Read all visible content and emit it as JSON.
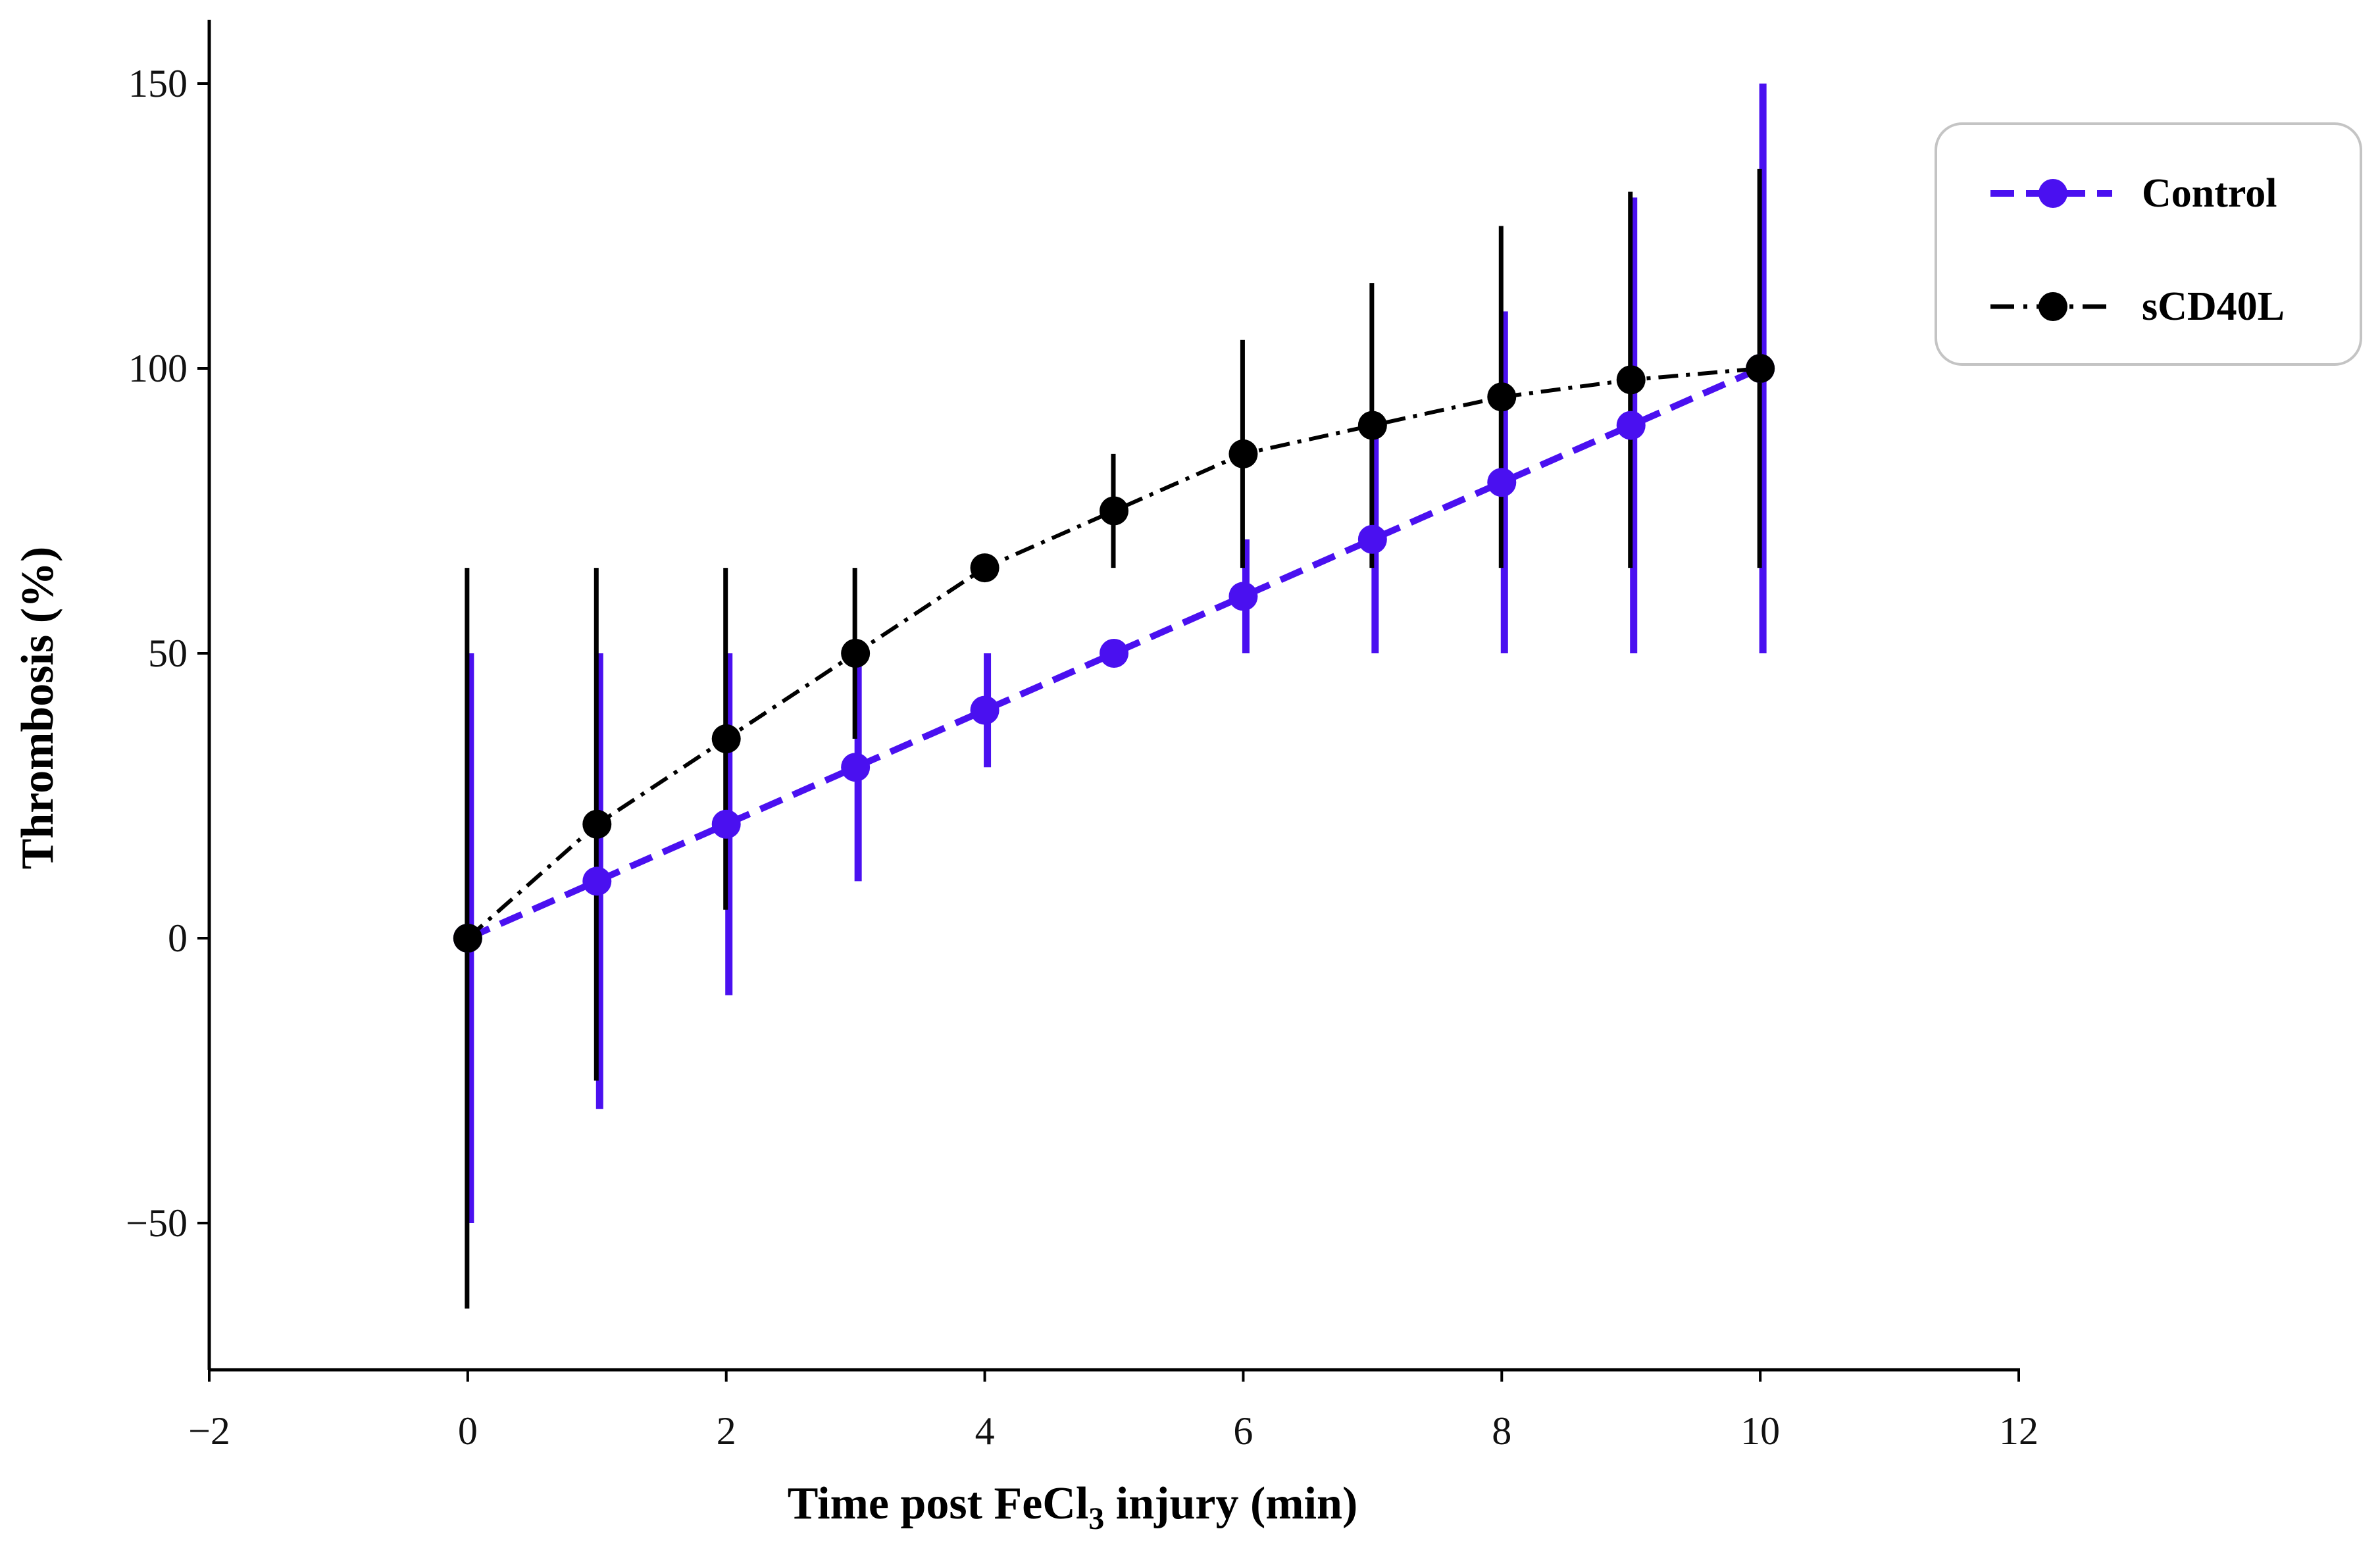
{
  "chart_data": {
    "type": "line",
    "title": "",
    "xlabel": {
      "prefix": "Time post FeCl",
      "subscript": "3",
      "suffix": " injury (min)"
    },
    "ylabel": "Thrombosis (%)",
    "xlim": [
      -2,
      12
    ],
    "ylim": [
      -75,
      160
    ],
    "xticks": [
      -2,
      0,
      2,
      4,
      6,
      8,
      10,
      12
    ],
    "yticks": [
      -50,
      0,
      50,
      100,
      150
    ],
    "xtick_labels": [
      "−2",
      "0",
      "2",
      "4",
      "6",
      "8",
      "10",
      "12"
    ],
    "ytick_labels": [
      "−50",
      "0",
      "50",
      "100",
      "150"
    ],
    "grid": false,
    "legend_position": "top-right",
    "series": [
      {
        "name": "Control",
        "color": "#4a10f0",
        "linestyle": "dashed",
        "x": [
          0,
          1,
          2,
          3,
          4,
          5,
          6,
          7,
          8,
          9,
          10
        ],
        "y": [
          0,
          10,
          20,
          30,
          40,
          50,
          60,
          70,
          80,
          90,
          100
        ],
        "err_low": [
          -50,
          -30,
          -10,
          10,
          30,
          50,
          50,
          50,
          50,
          50,
          50
        ],
        "err_high": [
          50,
          50,
          50,
          50,
          50,
          50,
          70,
          90,
          110,
          130,
          150
        ]
      },
      {
        "name": "sCD40L",
        "color": "#000000",
        "linestyle": "dashdot",
        "x": [
          0,
          1,
          2,
          3,
          4,
          5,
          6,
          7,
          8,
          9,
          10
        ],
        "y": [
          0,
          20,
          35,
          50,
          65,
          75,
          85,
          90,
          95,
          98,
          100
        ],
        "err_low": [
          -65,
          -25,
          5,
          35,
          65,
          65,
          65,
          65,
          65,
          65,
          65
        ],
        "err_high": [
          65,
          65,
          65,
          65,
          65,
          85,
          105,
          115,
          125,
          131,
          135
        ]
      }
    ]
  }
}
